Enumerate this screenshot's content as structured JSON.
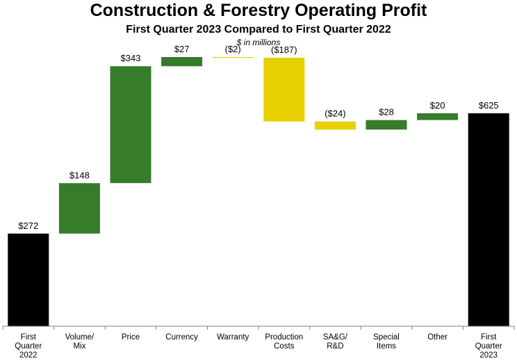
{
  "chart_data": {
    "type": "bar",
    "title": "Construction & Forestry Operating Profit",
    "subtitle": "First Quarter 2023 Compared to First Quarter 2022",
    "units_note": "$ in millions",
    "categories": [
      [
        "First",
        "Quarter",
        "2022"
      ],
      [
        "Volume/",
        "Mix"
      ],
      [
        "Price"
      ],
      [
        "Currency"
      ],
      [
        "Warranty"
      ],
      [
        "Production",
        "Costs"
      ],
      [
        "SA&G/",
        "R&D"
      ],
      [
        "Special",
        "Items"
      ],
      [
        "Other"
      ],
      [
        "First",
        "Quarter",
        "2023"
      ]
    ],
    "values": [
      272,
      148,
      343,
      27,
      -2,
      -187,
      -24,
      28,
      20,
      625
    ],
    "value_labels": [
      "$272",
      "$148",
      "$343",
      "$27",
      "($2)",
      "($187)",
      "($24)",
      "$28",
      "$20",
      "$625"
    ],
    "kinds": [
      "total",
      "delta",
      "delta",
      "delta",
      "delta",
      "delta",
      "delta",
      "delta",
      "delta",
      "total"
    ],
    "ylim": [
      0,
      790
    ],
    "grid": false,
    "legend": "none",
    "colors": {
      "total": "#000000",
      "increase": "#367C2B",
      "decrease": "#E6D000",
      "axis": "#7f7f7f"
    }
  }
}
